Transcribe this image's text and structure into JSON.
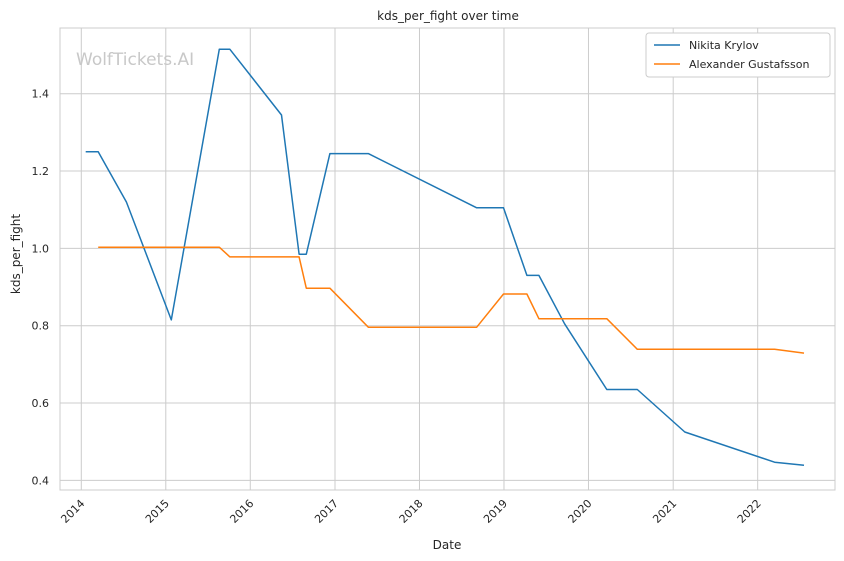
{
  "chart_data": {
    "type": "line",
    "title": "kds_per_fight over time",
    "xlabel": "Date",
    "ylabel": "kds_per_fight",
    "watermark": "WolfTickets.AI",
    "x_axis_kind": "date",
    "xlim": [
      "2013-10-01",
      "2022-12-01"
    ],
    "ylim": [
      0.375,
      1.57
    ],
    "x_ticks": [
      {
        "date": "2014-01-01",
        "label": "2014"
      },
      {
        "date": "2015-01-01",
        "label": "2015"
      },
      {
        "date": "2016-01-01",
        "label": "2016"
      },
      {
        "date": "2017-01-01",
        "label": "2017"
      },
      {
        "date": "2018-01-01",
        "label": "2018"
      },
      {
        "date": "2019-01-01",
        "label": "2019"
      },
      {
        "date": "2020-01-01",
        "label": "2020"
      },
      {
        "date": "2021-01-01",
        "label": "2021"
      },
      {
        "date": "2022-01-01",
        "label": "2022"
      }
    ],
    "y_ticks": [
      {
        "value": 0.4,
        "label": "0.4"
      },
      {
        "value": 0.6,
        "label": "0.6"
      },
      {
        "value": 0.8,
        "label": "0.8"
      },
      {
        "value": 1.0,
        "label": "1.0"
      },
      {
        "value": 1.2,
        "label": "1.2"
      },
      {
        "value": 1.4,
        "label": "1.4"
      }
    ],
    "grid": true,
    "legend_position": "top-right",
    "series": [
      {
        "name": "Nikita Krylov",
        "color": "#1f77b4",
        "points": [
          {
            "x": "2014-01-20",
            "y": 1.25
          },
          {
            "x": "2014-03-15",
            "y": 1.25
          },
          {
            "x": "2014-07-15",
            "y": 1.12
          },
          {
            "x": "2015-01-25",
            "y": 0.815
          },
          {
            "x": "2015-08-20",
            "y": 1.515
          },
          {
            "x": "2015-10-05",
            "y": 1.515
          },
          {
            "x": "2016-05-15",
            "y": 1.345
          },
          {
            "x": "2016-07-30",
            "y": 0.985
          },
          {
            "x": "2016-08-30",
            "y": 0.985
          },
          {
            "x": "2016-12-10",
            "y": 1.245
          },
          {
            "x": "2017-05-25",
            "y": 1.245
          },
          {
            "x": "2018-09-05",
            "y": 1.105
          },
          {
            "x": "2018-12-30",
            "y": 1.105
          },
          {
            "x": "2019-04-10",
            "y": 0.93
          },
          {
            "x": "2019-06-01",
            "y": 0.93
          },
          {
            "x": "2019-09-20",
            "y": 0.805
          },
          {
            "x": "2020-03-20",
            "y": 0.635
          },
          {
            "x": "2020-07-30",
            "y": 0.635
          },
          {
            "x": "2021-02-20",
            "y": 0.525
          },
          {
            "x": "2022-03-15",
            "y": 0.447
          },
          {
            "x": "2022-07-20",
            "y": 0.439
          }
        ]
      },
      {
        "name": "Alexander Gustafsson",
        "color": "#ff7f0e",
        "points": [
          {
            "x": "2014-03-15",
            "y": 1.003
          },
          {
            "x": "2015-08-20",
            "y": 1.003
          },
          {
            "x": "2015-10-05",
            "y": 0.978
          },
          {
            "x": "2016-07-30",
            "y": 0.978
          },
          {
            "x": "2016-08-30",
            "y": 0.897
          },
          {
            "x": "2016-12-10",
            "y": 0.897
          },
          {
            "x": "2017-05-25",
            "y": 0.796
          },
          {
            "x": "2018-09-05",
            "y": 0.796
          },
          {
            "x": "2018-12-30",
            "y": 0.882
          },
          {
            "x": "2019-04-10",
            "y": 0.882
          },
          {
            "x": "2019-06-01",
            "y": 0.818
          },
          {
            "x": "2020-03-20",
            "y": 0.818
          },
          {
            "x": "2020-07-30",
            "y": 0.739
          },
          {
            "x": "2022-03-15",
            "y": 0.739
          },
          {
            "x": "2022-07-20",
            "y": 0.729
          }
        ]
      }
    ]
  }
}
